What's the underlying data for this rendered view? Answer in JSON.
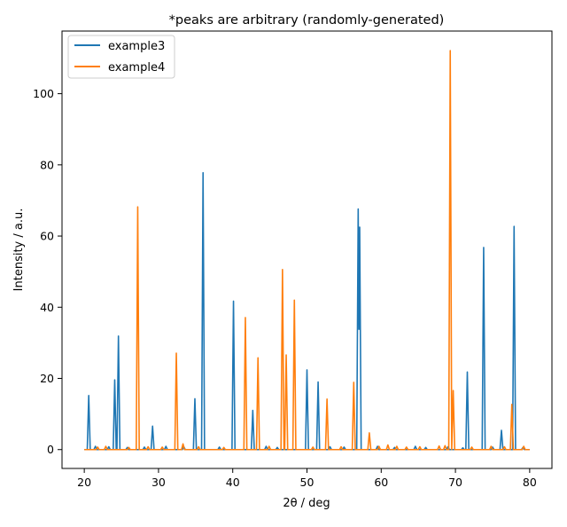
{
  "chart_data": {
    "type": "line",
    "title": "*peaks are arbitrary (randomly-generated)",
    "xlabel": "2θ / deg",
    "ylabel": "Intensity / a.u.",
    "xlim": [
      17.0,
      83.0
    ],
    "ylim": [
      -5.3,
      117.6
    ],
    "xticks": [
      20,
      30,
      40,
      50,
      60,
      70,
      80
    ],
    "yticks": [
      0,
      20,
      40,
      60,
      80,
      100
    ],
    "grid": false,
    "legend_position": "upper-left",
    "series": [
      {
        "name": "example3",
        "color": "#1f77b4",
        "peaks": [
          [
            20.6,
            15.2
          ],
          [
            24.1,
            19.6
          ],
          [
            24.6,
            31.9
          ],
          [
            29.2,
            6.6
          ],
          [
            34.9,
            14.3
          ],
          [
            36.0,
            77.8
          ],
          [
            40.1,
            41.7
          ],
          [
            42.7,
            11.0
          ],
          [
            50.0,
            22.4
          ],
          [
            51.5,
            19.0
          ],
          [
            56.9,
            67.6
          ],
          [
            57.1,
            62.5
          ],
          [
            71.6,
            21.8
          ],
          [
            73.8,
            56.8
          ],
          [
            76.2,
            5.4
          ],
          [
            77.9,
            62.7
          ]
        ],
        "baseline_blips": [
          [
            21.5,
            0.9
          ],
          [
            23.3,
            0.8
          ],
          [
            25.8,
            0.6
          ],
          [
            28.1,
            0.7
          ],
          [
            31.0,
            0.9
          ],
          [
            33.4,
            0.8
          ],
          [
            38.2,
            0.7
          ],
          [
            44.5,
            0.9
          ],
          [
            46.0,
            0.6
          ],
          [
            53.1,
            0.8
          ],
          [
            55.0,
            0.7
          ],
          [
            59.5,
            0.9
          ],
          [
            61.8,
            0.6
          ],
          [
            64.6,
            0.9
          ],
          [
            66.0,
            0.6
          ],
          [
            69.0,
            0.8
          ],
          [
            71.0,
            0.5
          ],
          [
            75.0,
            0.7
          ],
          [
            79.1,
            0.6
          ]
        ]
      },
      {
        "name": "example4",
        "color": "#ff7f0e",
        "peaks": [
          [
            27.2,
            68.2
          ],
          [
            32.4,
            27.1
          ],
          [
            41.7,
            37.1
          ],
          [
            43.4,
            25.8
          ],
          [
            46.7,
            50.6
          ],
          [
            47.2,
            26.6
          ],
          [
            48.3,
            42.0
          ],
          [
            52.7,
            14.2
          ],
          [
            56.3,
            18.9
          ],
          [
            58.4,
            4.7
          ],
          [
            69.3,
            112.1
          ],
          [
            69.7,
            16.6
          ],
          [
            77.6,
            12.7
          ]
        ],
        "baseline_blips": [
          [
            21.8,
            0.7
          ],
          [
            22.9,
            0.9
          ],
          [
            26.0,
            0.6
          ],
          [
            28.6,
            0.8
          ],
          [
            30.5,
            0.7
          ],
          [
            33.3,
            1.6
          ],
          [
            35.4,
            0.8
          ],
          [
            38.8,
            0.6
          ],
          [
            44.9,
            0.9
          ],
          [
            50.8,
            0.7
          ],
          [
            54.6,
            0.8
          ],
          [
            59.7,
            0.9
          ],
          [
            60.9,
            1.3
          ],
          [
            62.1,
            0.9
          ],
          [
            63.4,
            0.7
          ],
          [
            65.2,
            0.8
          ],
          [
            67.8,
            1.0
          ],
          [
            68.6,
            1.1
          ],
          [
            72.2,
            0.7
          ],
          [
            74.8,
            0.9
          ],
          [
            76.6,
            0.8
          ],
          [
            79.2,
            0.9
          ]
        ]
      }
    ]
  }
}
